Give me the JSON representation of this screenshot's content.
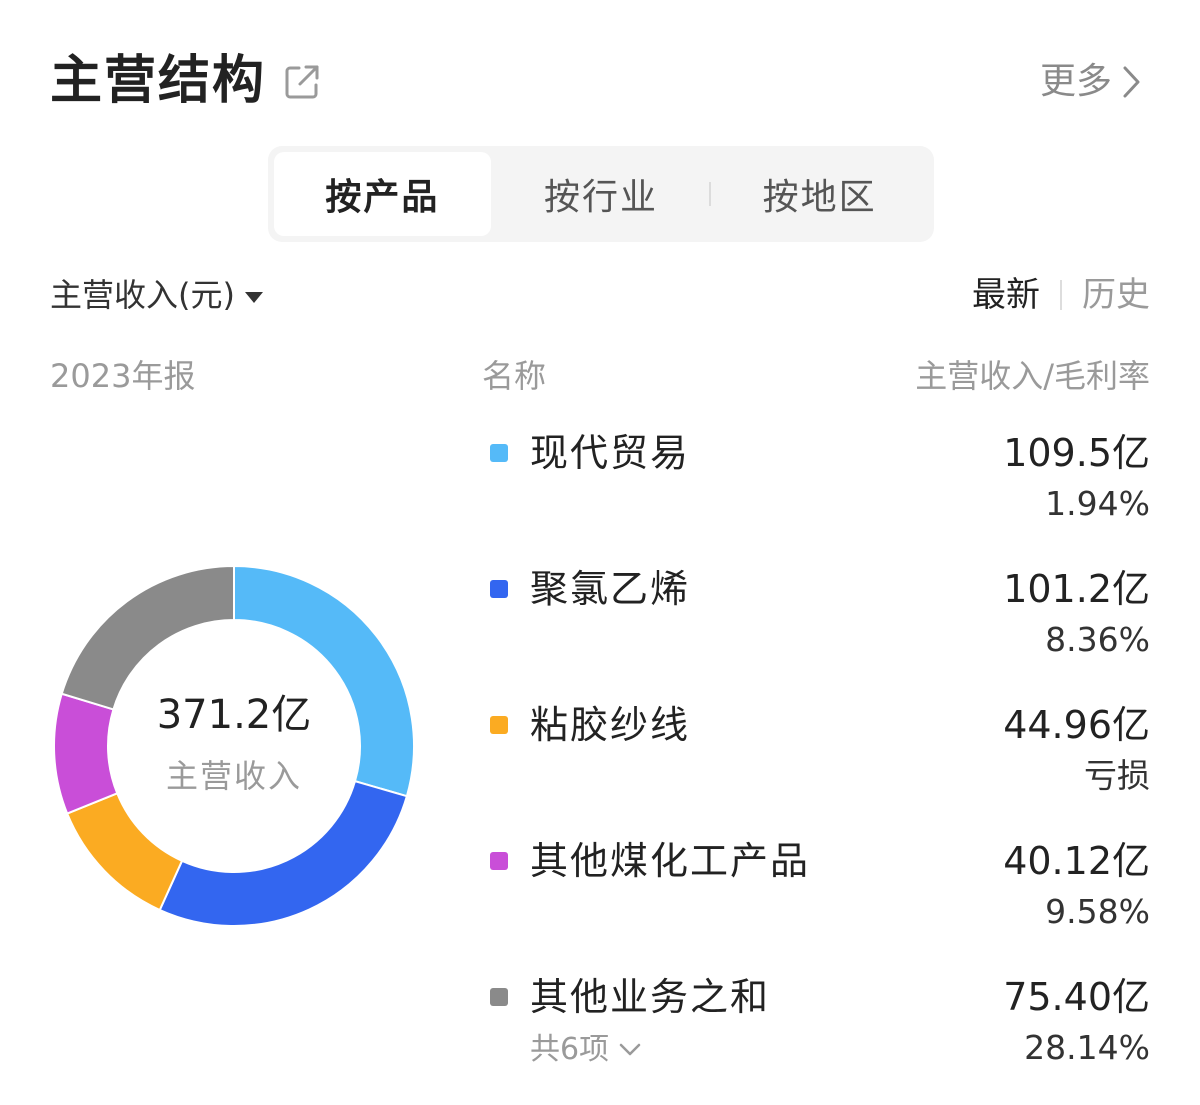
{
  "header": {
    "title": "主营结构",
    "more_label": "更多",
    "external_icon": "external-link-icon"
  },
  "tabs": [
    {
      "label": "按产品",
      "active": true
    },
    {
      "label": "按行业",
      "active": false
    },
    {
      "label": "按地区",
      "active": false
    }
  ],
  "metric": {
    "label": "主营收入(元)"
  },
  "period": {
    "latest": "最新",
    "history": "历史",
    "selected": "最新"
  },
  "columns": {
    "year": "2023年报",
    "name": "名称",
    "value": "主营收入/毛利率"
  },
  "donut": {
    "center_value": "371.2亿",
    "center_label": "主营收入"
  },
  "items": [
    {
      "name": "现代贸易",
      "revenue": "109.5亿",
      "margin": "1.94%",
      "revenue_yi": 109.5,
      "color": "#55baf8"
    },
    {
      "name": "聚氯乙烯",
      "revenue": "101.2亿",
      "margin": "8.36%",
      "revenue_yi": 101.2,
      "color": "#3366f0"
    },
    {
      "name": "粘胶纱线",
      "revenue": "44.96亿",
      "margin": "亏损",
      "revenue_yi": 44.96,
      "color": "#fbab22"
    },
    {
      "name": "其他煤化工产品",
      "revenue": "40.12亿",
      "margin": "9.58%",
      "revenue_yi": 40.12,
      "color": "#c94ed8"
    },
    {
      "name": "其他业务之和",
      "revenue": "75.40亿",
      "margin": "28.14%",
      "revenue_yi": 75.4,
      "color": "#8a8a8a",
      "expand_label": "共6项"
    }
  ]
}
